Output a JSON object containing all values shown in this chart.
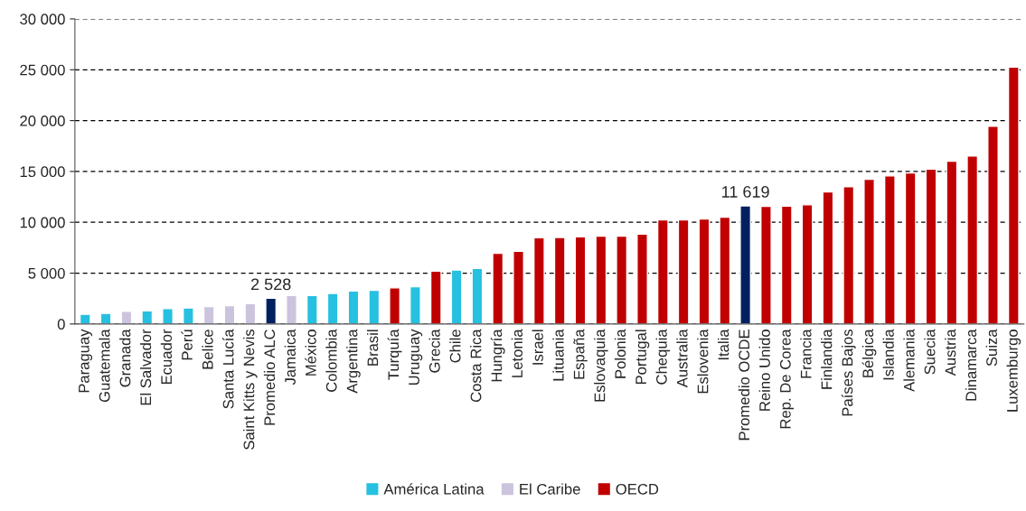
{
  "chart_data": {
    "type": "bar",
    "categories": [
      "Paraguay",
      "Guatemala",
      "Granada",
      "El Salvador",
      "Ecuador",
      "Perú",
      "Belice",
      "Santa Lucía",
      "Saint Kitts y Nevis",
      "Promedio ALC",
      "Jamaica",
      "México",
      "Colombia",
      "Argentina",
      "Brasil",
      "Turquía",
      "Uruguay",
      "Grecia",
      "Chile",
      "Costa Rica",
      "Hungría",
      "Letonia",
      "Israel",
      "Lituania",
      "España",
      "Eslovaquia",
      "Polonia",
      "Portugal",
      "Chequia",
      "Australia",
      "Eslovenia",
      "Italia",
      "Promedio OCDE",
      "Reino Unido",
      "Rep. De Corea",
      "Francia",
      "Finlandia",
      "Países Bajos",
      "Bélgica",
      "Islandia",
      "Alemania",
      "Suecia",
      "Austria",
      "Dinamarca",
      "Suiza",
      "Luxemburgo"
    ],
    "series": [
      {
        "name": "América Latina",
        "color": "#26c0e0",
        "values": [
          950,
          1040,
          null,
          1300,
          1510,
          1570,
          null,
          null,
          null,
          null,
          null,
          2810,
          3010,
          3250,
          3310,
          null,
          3670,
          null,
          5300,
          5470,
          null,
          null,
          null,
          null,
          null,
          null,
          null,
          null,
          null,
          null,
          null,
          null,
          null,
          null,
          null,
          null,
          null,
          null,
          null,
          null,
          null,
          null,
          null,
          null,
          null,
          null
        ]
      },
      {
        "name": "El Caribe",
        "color": "#ccc3dd",
        "values": [
          null,
          null,
          1240,
          null,
          null,
          null,
          1720,
          1810,
          2010,
          null,
          2810,
          null,
          null,
          null,
          null,
          null,
          null,
          null,
          null,
          null,
          null,
          null,
          null,
          null,
          null,
          null,
          null,
          null,
          null,
          null,
          null,
          null,
          null,
          null,
          null,
          null,
          null,
          null,
          null,
          null,
          null,
          null,
          null,
          null,
          null,
          null
        ]
      },
      {
        "name": "OECD",
        "color": "#c00000",
        "values": [
          null,
          null,
          null,
          null,
          null,
          null,
          null,
          null,
          null,
          null,
          null,
          null,
          null,
          null,
          null,
          3550,
          null,
          5200,
          null,
          null,
          6960,
          7160,
          8480,
          8500,
          8570,
          8630,
          8630,
          8840,
          10230,
          10230,
          10330,
          10510,
          null,
          11570,
          11600,
          11720,
          12990,
          13490,
          14230,
          14560,
          14850,
          15240,
          16010,
          16520,
          19450,
          25260
        ]
      },
      {
        "color": "#002060",
        "values": [
          null,
          null,
          null,
          null,
          null,
          null,
          null,
          null,
          null,
          2528,
          null,
          null,
          null,
          null,
          null,
          null,
          null,
          null,
          null,
          null,
          null,
          null,
          null,
          null,
          null,
          null,
          null,
          null,
          null,
          null,
          null,
          null,
          11619,
          null,
          null,
          null,
          null,
          null,
          null,
          null,
          null,
          null,
          null,
          null,
          null,
          null
        ],
        "value_labels": [
          null,
          null,
          null,
          null,
          null,
          null,
          null,
          null,
          null,
          "2 528",
          null,
          null,
          null,
          null,
          null,
          null,
          null,
          null,
          null,
          null,
          null,
          null,
          null,
          null,
          null,
          null,
          null,
          null,
          null,
          null,
          null,
          null,
          "11 619",
          null,
          null,
          null,
          null,
          null,
          null,
          null,
          null,
          null,
          null,
          null,
          null,
          null
        ]
      }
    ],
    "ylim": [
      0,
      30000
    ],
    "yticks": [
      0,
      {
        "value": 5000,
        "label": "5 000"
      },
      {
        "value": 10000,
        "label": "10 000"
      },
      {
        "value": 15000,
        "label": "15 000"
      },
      {
        "value": 20000,
        "label": "20 000"
      },
      {
        "value": 25000,
        "label": "25 000"
      },
      {
        "value": 30000,
        "label": "30 000"
      }
    ],
    "grid": "y",
    "legend": "bottom"
  }
}
